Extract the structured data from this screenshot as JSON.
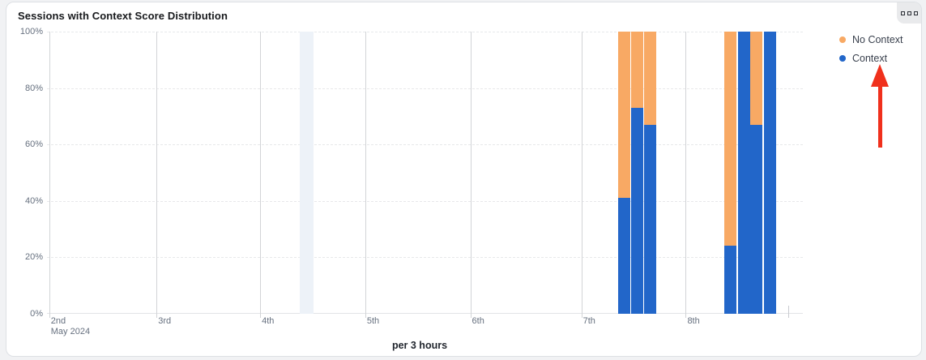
{
  "card": {
    "title": "Sessions with Context Score Distribution"
  },
  "legend": {
    "position": "top-right",
    "items": [
      {
        "label": "No Context",
        "color": "#F8A964"
      },
      {
        "label": "Context",
        "color": "#2266C9"
      }
    ]
  },
  "annotation": {
    "type": "arrow-up",
    "color": "#F0301C",
    "points_at": "Context legend item"
  },
  "chart_data": {
    "type": "bar",
    "variant": "stacked-100-percent",
    "title": "Sessions with Context Score Distribution",
    "xlabel": "per 3 hours",
    "ylabel": "",
    "ylim": [
      0,
      100
    ],
    "grid": {
      "horizontal": "dashed",
      "vertical": "solid-per-day"
    },
    "y_ticks": [
      {
        "label": "0%",
        "value": 0
      },
      {
        "label": "20%",
        "value": 20
      },
      {
        "label": "40%",
        "value": 40
      },
      {
        "label": "60%",
        "value": 60
      },
      {
        "label": "80%",
        "value": 80
      },
      {
        "label": "100%",
        "value": 100
      }
    ],
    "x_ticks": [
      {
        "label": "2nd",
        "sublabel": "May 2024",
        "pos": 0.003
      },
      {
        "label": "3rd",
        "pos": 0.147
      },
      {
        "label": "4th",
        "pos": 0.286
      },
      {
        "label": "5th",
        "pos": 0.427
      },
      {
        "label": "6th",
        "pos": 0.568
      },
      {
        "label": "7th",
        "pos": 0.717
      },
      {
        "label": "8th",
        "pos": 0.857
      }
    ],
    "end_tick_pos": 0.995,
    "highlight_band": {
      "pos": 0.339,
      "width": 0.019,
      "color": "#EDF2F8"
    },
    "series": [
      {
        "name": "Context",
        "color": "#2266C9"
      },
      {
        "name": "No Context",
        "color": "#F8A964"
      }
    ],
    "bar_width_frac": 0.0163,
    "bars": [
      {
        "pos": 0.766,
        "context_pct": 41,
        "no_context_pct": 59
      },
      {
        "pos": 0.784,
        "context_pct": 73,
        "no_context_pct": 27
      },
      {
        "pos": 0.801,
        "context_pct": 67,
        "no_context_pct": 33
      },
      {
        "pos": 0.909,
        "context_pct": 24,
        "no_context_pct": 76
      },
      {
        "pos": 0.927,
        "context_pct": 100,
        "no_context_pct": 0
      },
      {
        "pos": 0.944,
        "context_pct": 67,
        "no_context_pct": 33
      },
      {
        "pos": 0.962,
        "context_pct": 100,
        "no_context_pct": 0
      }
    ]
  }
}
